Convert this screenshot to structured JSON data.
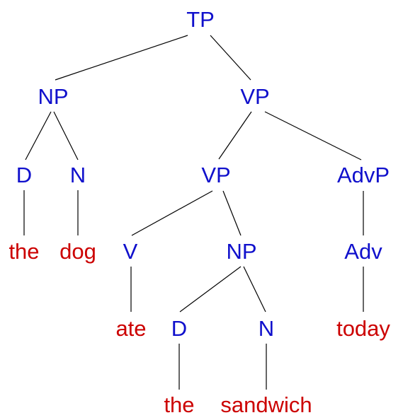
{
  "colors": {
    "category": "#1010cc",
    "word": "#cc0000",
    "edge": "#000000"
  },
  "nodes": {
    "tp": "TP",
    "np_subject": "NP",
    "vp_main": "VP",
    "d_subject": "D",
    "n_subject": "N",
    "vp_inner": "VP",
    "advp": "AdvP",
    "v": "V",
    "np_object": "NP",
    "adv": "Adv",
    "d_object": "D",
    "n_object": "N"
  },
  "words": {
    "the_1": "the",
    "dog": "dog",
    "ate": "ate",
    "today": "today",
    "the_2": "the",
    "sandwich": "sandwich"
  }
}
